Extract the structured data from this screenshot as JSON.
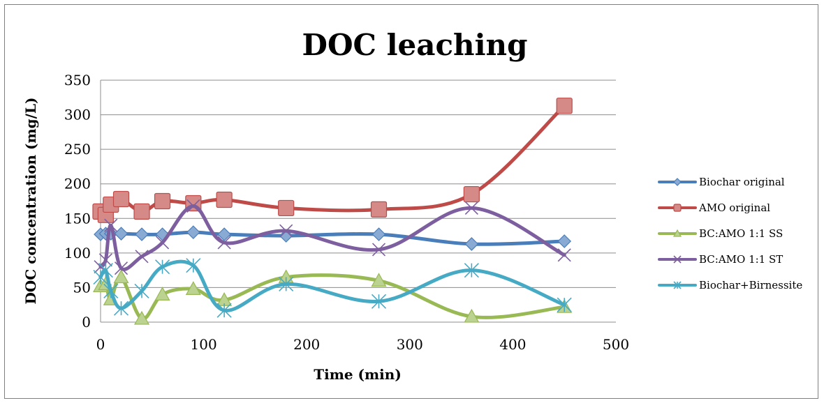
{
  "chart_data": {
    "type": "line",
    "title": "DOC leaching",
    "xlabel": "Time (min)",
    "ylabel": "DOC concentration (mg/L)",
    "xlim": [
      0,
      500
    ],
    "ylim": [
      0,
      350
    ],
    "xticks": [
      0,
      100,
      200,
      300,
      400,
      500
    ],
    "yticks": [
      0,
      50,
      100,
      150,
      200,
      250,
      300,
      350
    ],
    "grid": "horizontal",
    "legend_position": "right",
    "series": [
      {
        "name": "Biochar original",
        "color": "#4a7ebb",
        "marker": "diamond",
        "x": [
          0,
          5,
          10,
          20,
          40,
          60,
          90,
          120,
          180,
          270,
          360,
          450
        ],
        "y": [
          127,
          128,
          128,
          128,
          127,
          127,
          130,
          127,
          125,
          127,
          113,
          117
        ]
      },
      {
        "name": "AMO original",
        "color": "#be4b48",
        "marker": "square",
        "x": [
          0,
          5,
          10,
          20,
          40,
          60,
          90,
          120,
          180,
          270,
          360,
          450
        ],
        "y": [
          160,
          155,
          170,
          178,
          160,
          175,
          172,
          177,
          165,
          163,
          185,
          313
        ]
      },
      {
        "name": "BC:AMO 1:1 SS",
        "color": "#98b954",
        "marker": "triangle",
        "x": [
          0,
          5,
          10,
          20,
          40,
          60,
          90,
          120,
          180,
          270,
          360,
          450
        ],
        "y": [
          52,
          55,
          33,
          65,
          5,
          40,
          48,
          32,
          65,
          60,
          8,
          22
        ]
      },
      {
        "name": "BC:AMO 1:1 ST",
        "color": "#7d5fa0",
        "marker": "x",
        "x": [
          0,
          5,
          10,
          20,
          40,
          60,
          90,
          120,
          180,
          270,
          360,
          450
        ],
        "y": [
          80,
          90,
          140,
          78,
          95,
          115,
          168,
          115,
          132,
          105,
          165,
          97
        ]
      },
      {
        "name": "Biochar+Birnessite",
        "color": "#46aac5",
        "marker": "star",
        "x": [
          0,
          5,
          10,
          20,
          40,
          60,
          90,
          120,
          180,
          270,
          360,
          450
        ],
        "y": [
          65,
          75,
          45,
          20,
          45,
          80,
          82,
          17,
          55,
          30,
          75,
          25
        ]
      }
    ]
  }
}
